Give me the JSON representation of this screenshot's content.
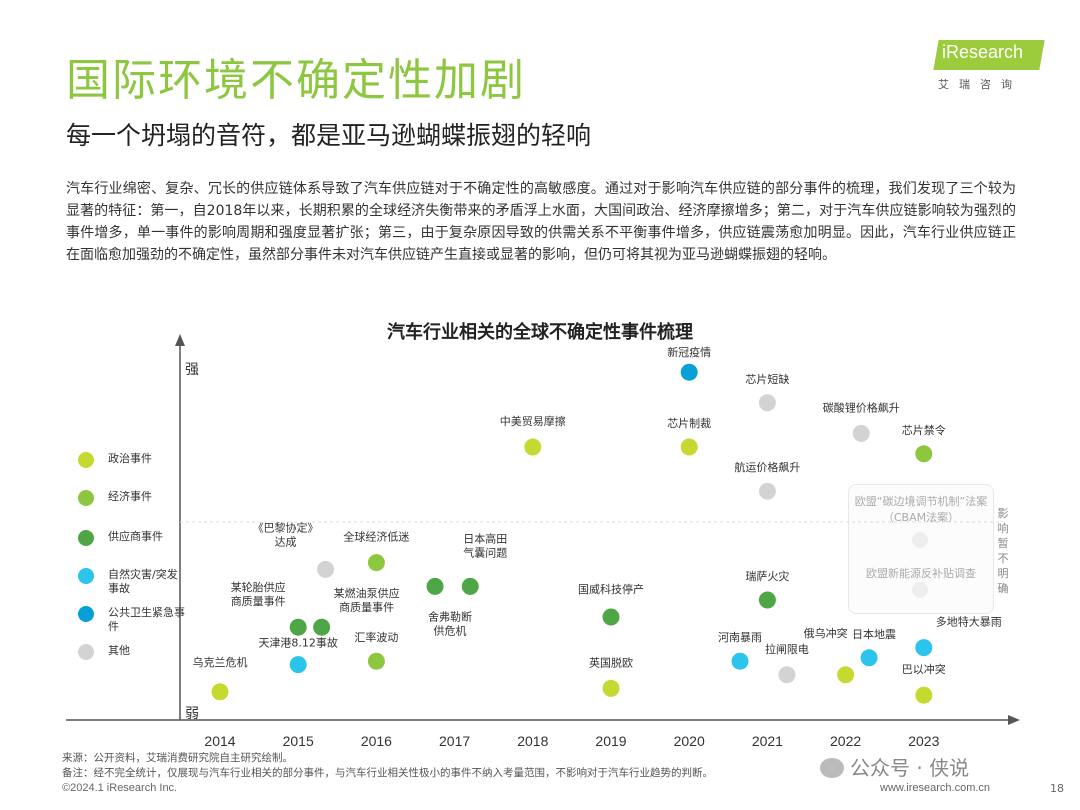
{
  "header": {
    "title": "国际环境不确定性加剧",
    "subtitle": "每一个坍塌的音符，都是亚马逊蝴蝶振翅的轻响",
    "logo_text": "iResearch",
    "logo_cn": "艾瑞咨询"
  },
  "intro": "汽车行业绵密、复杂、冗长的供应链体系导致了汽车供应链对于不确定性的高敏感度。通过对于影响汽车供应链的部分事件的梳理，我们发现了三个较为显著的特征：第一，自2018年以来，长期积累的全球经济失衡带来的矛盾浮上水面，大国间政治、经济摩擦增多；第二，对于汽车供应链影响较为强烈的事件增多，单一事件的影响周期和强度显著扩张；第三，由于复杂原因导致的供需关系不平衡事件增多，供应链震荡愈加明显。因此，汽车行业供应链正在面临愈加强劲的不确定性，虽然部分事件未对汽车供应链产生直接或显著的影响，但仍可将其视为亚马逊蝴蝶振翅的轻响。",
  "chart_data": {
    "type": "scatter",
    "title": "汽车行业相关的全球不确定性事件梳理",
    "ylabel_top": "强",
    "ylabel_bottom": "弱",
    "x_ticks": [
      "2014",
      "2015",
      "2016",
      "2017",
      "2018",
      "2019",
      "2020",
      "2021",
      "2022",
      "2023"
    ],
    "categories": [
      {
        "key": "politics",
        "name": "政治事件",
        "color": "#c5d930"
      },
      {
        "key": "economy",
        "name": "经济事件",
        "color": "#8dc63f"
      },
      {
        "key": "supplier",
        "name": "供应商事件",
        "color": "#4ea646"
      },
      {
        "key": "disaster",
        "name": "自然灾害/突发事故",
        "color": "#2bc4ec"
      },
      {
        "key": "health",
        "name": "公共卫生紧急事件",
        "color": "#0a9fd6"
      },
      {
        "key": "other",
        "name": "其他",
        "color": "#d3d3d3"
      }
    ],
    "events": [
      {
        "x": 2014.0,
        "y": 0.03,
        "cat": "politics",
        "label": "乌克兰危机"
      },
      {
        "x": 2015.0,
        "y": 0.22,
        "cat": "supplier",
        "label": "某轮胎供应商质量事件"
      },
      {
        "x": 2015.3,
        "y": 0.22,
        "cat": "supplier",
        "label": "某燃油泵供应商质量事件"
      },
      {
        "x": 2015.0,
        "y": 0.11,
        "cat": "disaster",
        "label": "天津港8.12事故"
      },
      {
        "x": 2015.35,
        "y": 0.39,
        "cat": "other",
        "label": "《巴黎协定》达成"
      },
      {
        "x": 2016.0,
        "y": 0.41,
        "cat": "economy",
        "label": "全球经济低迷"
      },
      {
        "x": 2016.0,
        "y": 0.12,
        "cat": "economy",
        "label": "汇率波动"
      },
      {
        "x": 2016.75,
        "y": 0.34,
        "cat": "supplier",
        "label": "舍弗勒断供危机"
      },
      {
        "x": 2017.2,
        "y": 0.34,
        "cat": "supplier",
        "label": "日本高田气囊问题"
      },
      {
        "x": 2018.0,
        "y": 0.75,
        "cat": "politics",
        "label": "中美贸易摩擦"
      },
      {
        "x": 2019.0,
        "y": 0.25,
        "cat": "supplier",
        "label": "国威科技停产"
      },
      {
        "x": 2019.0,
        "y": 0.04,
        "cat": "politics",
        "label": "英国脱欧"
      },
      {
        "x": 2020.0,
        "y": 0.97,
        "cat": "health",
        "label": "新冠疫情"
      },
      {
        "x": 2020.0,
        "y": 0.75,
        "cat": "politics",
        "label": "芯片制裁"
      },
      {
        "x": 2021.0,
        "y": 0.88,
        "cat": "other",
        "label": "芯片短缺"
      },
      {
        "x": 2021.0,
        "y": 0.62,
        "cat": "other",
        "label": "航运价格飙升"
      },
      {
        "x": 2021.0,
        "y": 0.3,
        "cat": "supplier",
        "label": "瑞萨火灾"
      },
      {
        "x": 2020.65,
        "y": 0.12,
        "cat": "disaster",
        "label": "河南暴雨"
      },
      {
        "x": 2021.25,
        "y": 0.08,
        "cat": "other",
        "label": "拉闸限电"
      },
      {
        "x": 2022.0,
        "y": 0.08,
        "cat": "politics",
        "label": "俄乌冲突"
      },
      {
        "x": 2022.2,
        "y": 0.79,
        "cat": "other",
        "label": "碳酸锂价格飙升"
      },
      {
        "x": 2022.3,
        "y": 0.13,
        "cat": "disaster",
        "label": "日本地震"
      },
      {
        "x": 2023.0,
        "y": 0.73,
        "cat": "economy",
        "label": "芯片禁令"
      },
      {
        "x": 2023.0,
        "y": 0.02,
        "cat": "politics",
        "label": "巴以冲突"
      },
      {
        "x": 2023.0,
        "y": 0.16,
        "cat": "disaster",
        "label": "多地特大暴雨"
      }
    ],
    "uncertain_box": {
      "items": [
        "欧盟“碳边境调节机制”法案（CBAM法案）",
        "欧盟新能源反补贴调查"
      ],
      "note": "影响暂不明确"
    }
  },
  "notes": {
    "source": "来源：公开资料，艾瑞消费研究院自主研究绘制。",
    "remark": "备注：经不完全统计，仅展现与汽车行业相关的部分事件，与汽车行业相关性极小的事件不纳入考量范围，不影响对于汽车行业趋势的判断。"
  },
  "footer": {
    "copyright": "©2024.1 iResearch Inc.",
    "website": "www.iresearch.com.cn",
    "page": "18",
    "watermark": "公众号 · 侠说"
  }
}
